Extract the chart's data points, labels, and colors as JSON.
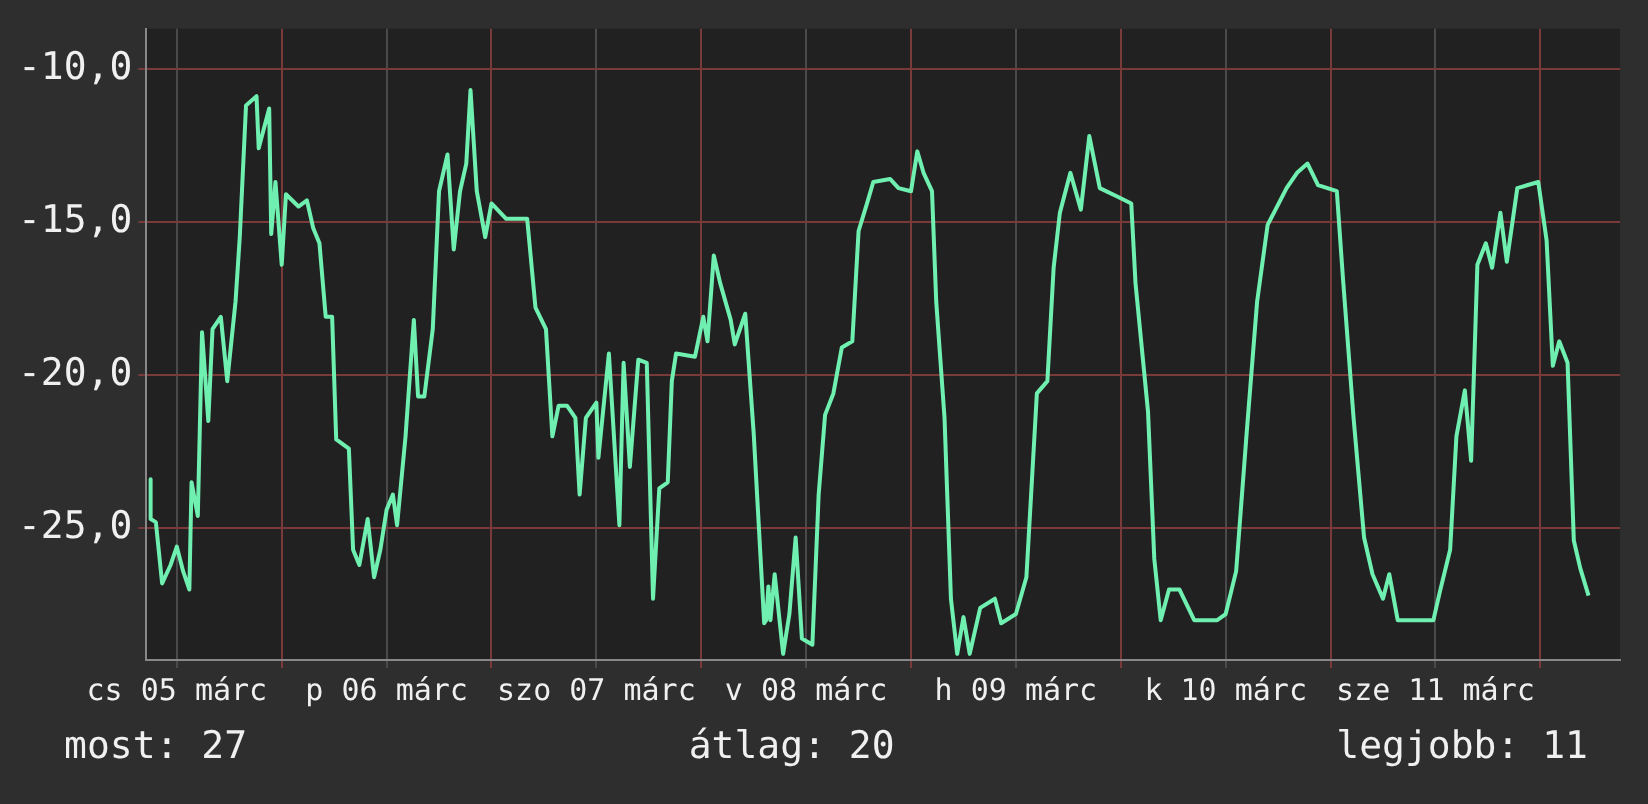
{
  "chart_data": {
    "type": "line",
    "xlim": [
      "--03-05T08:31",
      "--03-12T09:07"
    ],
    "ylim": [
      -29.3,
      -8.7
    ],
    "yticks": [
      {
        "value": -10,
        "label": "-10,0"
      },
      {
        "value": -15,
        "label": "-15,0"
      },
      {
        "value": -20,
        "label": "-20,0"
      },
      {
        "value": -25,
        "label": "-25,0"
      }
    ],
    "xticks": [
      {
        "value": "--03-05T12:00",
        "label": "cs 05 márc"
      },
      {
        "value": "--03-06T00:00",
        "label": null
      },
      {
        "value": "--03-06T12:00",
        "label": "p 06 márc"
      },
      {
        "value": "--03-07T00:00",
        "label": null
      },
      {
        "value": "--03-07T12:00",
        "label": "szo 07 márc"
      },
      {
        "value": "--03-08T00:00",
        "label": null
      },
      {
        "value": "--03-08T12:00",
        "label": "v 08 márc"
      },
      {
        "value": "--03-09T00:00",
        "label": null
      },
      {
        "value": "--03-09T12:00",
        "label": "h 09 márc"
      },
      {
        "value": "--03-10T00:00",
        "label": null
      },
      {
        "value": "--03-10T12:00",
        "label": "k 10 márc"
      },
      {
        "value": "--03-11T00:00",
        "label": null
      },
      {
        "value": "--03-11T12:00",
        "label": "sze 11 márc"
      },
      {
        "value": "--03-12T00:00",
        "label": null
      }
    ],
    "grid": true,
    "annotations": [
      "most: 27",
      "átlag: 20",
      "legjobb: 11"
    ],
    "series": [
      {
        "color": "#6ff0b0",
        "x": [
          "--03-05T09:00",
          "--03-05T09:00",
          "--03-05T09:36",
          "--03-05T10:19",
          "--03-05T11:17",
          "--03-05T12:00",
          "--03-05T12:43",
          "--03-05T13:26",
          "--03-05T13:41",
          "--03-05T14:24",
          "--03-05T14:53",
          "--03-05T15:36",
          "--03-05T16:05",
          "--03-05T17:02",
          "--03-05T17:46",
          "--03-05T18:43",
          "--03-05T19:12",
          "--03-05T19:55",
          "--03-05T21:07",
          "--03-05T21:22",
          "--03-05T22:34",
          "--03-05T22:48",
          "--03-05T23:17",
          "--03-06T00:00",
          "--03-06T00:29",
          "--03-06T01:55",
          "--03-06T02:53",
          "--03-06T03:36",
          "--03-06T04:19",
          "--03-06T05:02",
          "--03-06T05:46",
          "--03-06T06:14",
          "--03-06T07:41",
          "--03-06T08:10",
          "--03-06T08:53",
          "--03-06T09:50",
          "--03-06T10:34",
          "--03-06T11:17",
          "--03-06T12:00",
          "--03-06T12:43",
          "--03-06T13:12",
          "--03-06T14:10",
          "--03-06T15:07",
          "--03-06T15:36",
          "--03-06T16:19",
          "--03-06T17:17",
          "--03-06T18:00",
          "--03-06T18:58",
          "--03-06T19:41",
          "--03-06T20:24",
          "--03-06T21:07",
          "--03-06T21:36",
          "--03-06T22:19",
          "--03-06T23:17",
          "--03-07T00:00",
          "--03-07T01:41",
          "--03-07T04:05",
          "--03-07T05:02",
          "--03-07T06:14",
          "--03-07T06:58",
          "--03-07T07:41",
          "--03-07T08:38",
          "--03-07T09:36",
          "--03-07T10:05",
          "--03-07T10:48",
          "--03-07T12:00",
          "--03-07T12:14",
          "--03-07T13:26",
          "--03-07T14:38",
          "--03-07T15:07",
          "--03-07T15:50",
          "--03-07T16:48",
          "--03-07T17:46",
          "--03-07T18:29",
          "--03-07T19:12",
          "--03-07T20:10",
          "--03-07T20:38",
          "--03-07T21:07",
          "--03-07T23:17",
          "--03-08T00:14",
          "--03-08T00:43",
          "--03-08T01:26",
          "--03-08T02:10",
          "--03-08T03:22",
          "--03-08T03:50",
          "--03-08T05:02",
          "--03-08T06:00",
          "--03-08T07:12",
          "--03-08T07:26",
          "--03-08T07:41",
          "--03-08T07:55",
          "--03-08T08:24",
          "--03-08T09:22",
          "--03-08T10:05",
          "--03-08T10:48",
          "--03-08T11:31",
          "--03-08T12:43",
          "--03-08T13:26",
          "--03-08T14:10",
          "--03-08T15:07",
          "--03-08T16:05",
          "--03-08T17:17",
          "--03-08T18:00",
          "--03-08T18:58",
          "--03-08T19:41",
          "--03-08T21:36",
          "--03-08T22:34",
          "--03-09T00:00",
          "--03-09T00:43",
          "--03-09T01:26",
          "--03-09T02:24",
          "--03-09T02:53",
          "--03-09T03:50",
          "--03-09T04:34",
          "--03-09T05:17",
          "--03-09T06:00",
          "--03-09T06:43",
          "--03-09T07:55",
          "--03-09T09:36",
          "--03-09T10:19",
          "--03-09T12:00",
          "--03-09T13:12",
          "--03-09T14:24",
          "--03-09T15:36",
          "--03-09T16:19",
          "--03-09T17:02",
          "--03-09T18:14",
          "--03-09T19:26",
          "--03-09T20:24",
          "--03-09T21:36",
          "--03-09T23:46",
          "--03-10T01:12",
          "--03-10T01:41",
          "--03-10T03:07",
          "--03-10T03:50",
          "--03-10T04:34",
          "--03-10T05:31",
          "--03-10T06:43",
          "--03-10T08:24",
          "--03-10T11:02",
          "--03-10T12:00",
          "--03-10T13:12",
          "--03-10T14:24",
          "--03-10T15:36",
          "--03-10T16:48",
          "--03-10T18:58",
          "--03-10T20:10",
          "--03-10T21:22",
          "--03-10T22:34",
          "--03-11T00:43",
          "--03-11T01:26",
          "--03-11T02:38",
          "--03-11T03:50",
          "--03-11T04:48",
          "--03-11T06:00",
          "--03-11T06:43",
          "--03-11T07:41",
          "--03-11T11:46",
          "--03-11T12:29",
          "--03-11T13:41",
          "--03-11T14:24",
          "--03-11T15:22",
          "--03-11T16:05",
          "--03-11T16:48",
          "--03-11T17:46",
          "--03-11T18:29",
          "--03-11T19:26",
          "--03-11T20:10",
          "--03-11T21:22",
          "--03-11T23:46",
          "--03-12T00:43",
          "--03-12T01:26",
          "--03-12T02:10",
          "--03-12T03:07",
          "--03-12T03:50",
          "--03-12T04:34",
          "--03-12T05:31"
        ],
        "values": [
          -23.4,
          -24.7,
          -24.8,
          -26.8,
          -26.2,
          -25.6,
          -26.4,
          -27.0,
          -23.5,
          -24.6,
          -18.6,
          -21.5,
          -18.5,
          -18.1,
          -20.2,
          -17.6,
          -15.5,
          -11.2,
          -10.9,
          -12.6,
          -11.3,
          -15.4,
          -13.7,
          -16.4,
          -14.1,
          -14.5,
          -14.3,
          -15.2,
          -15.7,
          -18.1,
          -18.1,
          -22.1,
          -22.4,
          -25.7,
          -26.2,
          -24.7,
          -26.6,
          -25.7,
          -24.4,
          -23.9,
          -24.9,
          -22.0,
          -18.2,
          -20.7,
          -20.7,
          -18.5,
          -14.0,
          -12.8,
          -15.9,
          -14.0,
          -13.1,
          -10.7,
          -14.0,
          -15.5,
          -14.4,
          -14.9,
          -14.9,
          -17.8,
          -18.5,
          -22.0,
          -21.0,
          -21.0,
          -21.4,
          -23.9,
          -21.4,
          -20.9,
          -22.7,
          -19.3,
          -24.9,
          -19.6,
          -23.0,
          -19.5,
          -19.6,
          -27.3,
          -23.7,
          -23.5,
          -20.2,
          -19.3,
          -19.4,
          -18.1,
          -18.9,
          -16.1,
          -17.0,
          -18.2,
          -19.0,
          -18.0,
          -21.9,
          -28.1,
          -28.0,
          -26.9,
          -28.0,
          -26.5,
          -29.1,
          -27.8,
          -25.3,
          -28.6,
          -28.8,
          -23.9,
          -21.3,
          -20.6,
          -19.1,
          -18.9,
          -15.3,
          -14.4,
          -13.7,
          -13.6,
          -13.9,
          -14.0,
          -12.7,
          -13.4,
          -14.0,
          -17.6,
          -21.4,
          -27.3,
          -29.1,
          -27.9,
          -29.1,
          -27.6,
          -27.3,
          -28.1,
          -27.8,
          -26.6,
          -20.6,
          -20.2,
          -16.5,
          -14.7,
          -13.4,
          -14.6,
          -12.2,
          -13.9,
          -14.2,
          -14.4,
          -17.0,
          -21.2,
          -26.0,
          -28.0,
          -27.0,
          -27.0,
          -28.0,
          -28.0,
          -27.8,
          -26.4,
          -21.9,
          -17.6,
          -15.1,
          -13.9,
          -13.4,
          -13.1,
          -13.8,
          -14.0,
          -16.9,
          -21.4,
          -25.3,
          -26.5,
          -27.3,
          -26.5,
          -28.0,
          -28.0,
          -27.1,
          -25.7,
          -22.0,
          -20.5,
          -22.8,
          -16.4,
          -15.7,
          -16.5,
          -14.7,
          -16.3,
          -13.9,
          -13.7,
          -15.6,
          -19.7,
          -18.9,
          -19.6,
          -25.4,
          -26.3,
          -27.2
        ]
      }
    ]
  }
}
